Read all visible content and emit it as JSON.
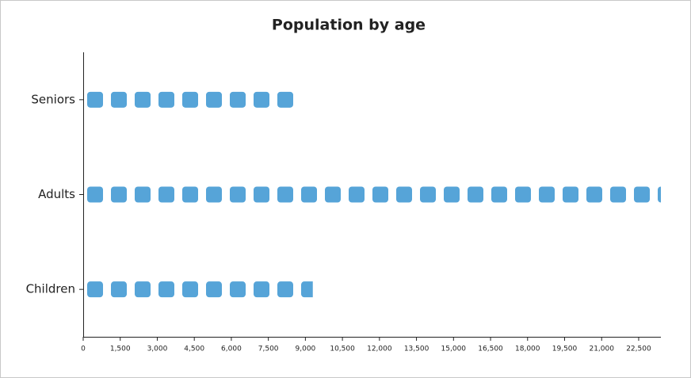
{
  "chart_data": {
    "type": "pictorial-bar",
    "title": "Population by age",
    "categories": [
      "Seniors",
      "Adults",
      "Children"
    ],
    "values": [
      8800,
      23400,
      9300
    ],
    "color": "#56a4d8",
    "xlim": [
      0,
      23400
    ],
    "xticks": [
      0,
      {
        "value": 1500,
        "label": "1,500"
      },
      {
        "value": 3000,
        "label": "3,000"
      },
      {
        "value": 4500,
        "label": "4,500"
      },
      {
        "value": 6000,
        "label": "6,000"
      },
      {
        "value": 7500,
        "label": "7,500"
      },
      {
        "value": 9000,
        "label": "9,000"
      },
      {
        "value": 10500,
        "label": "10,500"
      },
      {
        "value": 12000,
        "label": "12,000"
      },
      {
        "value": 13500,
        "label": "13,500"
      },
      {
        "value": 15000,
        "label": "15,000"
      },
      {
        "value": 16500,
        "label": "16,500"
      },
      {
        "value": 18000,
        "label": "18,000"
      },
      {
        "value": 19500,
        "label": "19,500"
      },
      {
        "value": 21000,
        "label": "21,000"
      },
      {
        "value": 22500,
        "label": "22,500"
      }
    ]
  }
}
